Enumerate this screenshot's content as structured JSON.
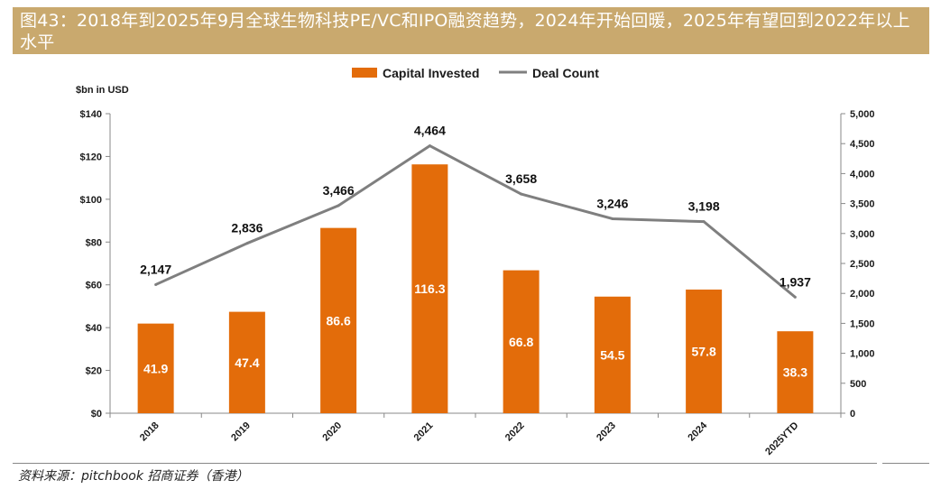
{
  "header": {
    "title": "图43：2018年到2025年9月全球生物科技PE/VC和IPO融资趋势，2024年开始回暖，2025年有望回到2022年以上水平"
  },
  "source": "资料来源：pitchbook 招商证券（香港）",
  "colors": {
    "bar": "#e36c0a",
    "line": "#7f7f7f",
    "header_bg": "#c9a96e"
  },
  "chart_data": {
    "type": "bar",
    "title": "",
    "unit_label": "$bn in USD",
    "categories": [
      "2018",
      "2019",
      "2020",
      "2021",
      "2022",
      "2023",
      "2024",
      "2025YTD"
    ],
    "series": [
      {
        "name": "Capital Invested",
        "type": "bar",
        "axis": "left",
        "values": [
          41.9,
          47.4,
          86.6,
          116.3,
          66.8,
          54.5,
          57.8,
          38.3
        ],
        "labels": [
          "41.9",
          "47.4",
          "86.6",
          "116.3",
          "66.8",
          "54.5",
          "57.8",
          "38.3"
        ]
      },
      {
        "name": "Deal Count",
        "type": "line",
        "axis": "right",
        "values": [
          2147,
          2836,
          3466,
          4464,
          3658,
          3246,
          3198,
          1937
        ],
        "labels": [
          "2,147",
          "2,836",
          "3,466",
          "4,464",
          "3,658",
          "3,246",
          "3,198",
          "1,937"
        ]
      }
    ],
    "y_left": {
      "lim": [
        0,
        140
      ],
      "ticks": [
        0,
        20,
        40,
        60,
        80,
        100,
        120,
        140
      ],
      "tick_labels": [
        "$0",
        "$20",
        "$40",
        "$60",
        "$80",
        "$100",
        "$120",
        "$140"
      ]
    },
    "y_right": {
      "lim": [
        0,
        5000
      ],
      "ticks": [
        0,
        500,
        1000,
        1500,
        2000,
        2500,
        3000,
        3500,
        4000,
        4500,
        5000
      ],
      "tick_labels": [
        "0",
        "500",
        "1,000",
        "1,500",
        "2,000",
        "2,500",
        "3,000",
        "3,500",
        "4,000",
        "4,500",
        "5,000"
      ]
    },
    "legend_position": "top-center",
    "grid": false
  }
}
